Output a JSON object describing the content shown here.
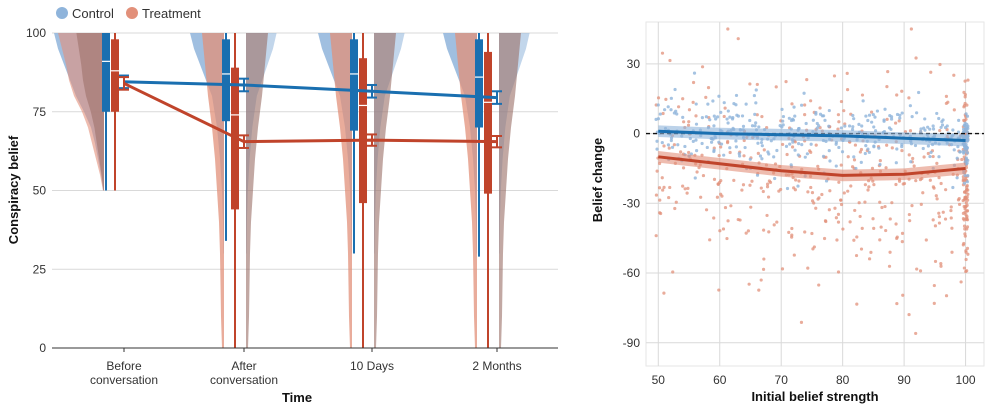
{
  "colors": {
    "control": "#1a6fb0",
    "treatment": "#c0442b",
    "control_light": "#8fb4db",
    "treatment_light": "#e2907a",
    "overlap": "#9a6e66",
    "grid": "#d9d9d9"
  },
  "legend": [
    {
      "label": "Control",
      "color_key": "control_light"
    },
    {
      "label": "Treatment",
      "color_key": "treatment_light"
    }
  ],
  "chart_data": [
    {
      "type": "line",
      "xlabel": "Time",
      "ylabel": "Conspiracy belief",
      "ylim": [
        0,
        100
      ],
      "yticks": [
        0,
        25,
        50,
        75,
        100
      ],
      "categories": [
        "Before\nconversation",
        "After\nconversation",
        "10 Days",
        "2 Months"
      ],
      "series": [
        {
          "name": "Control",
          "values": [
            84.5,
            83.5,
            81.5,
            79.5
          ],
          "err": [
            2.0,
            2.0,
            2.0,
            2.0
          ]
        },
        {
          "name": "Treatment",
          "values": [
            84.0,
            65.5,
            66.0,
            65.5
          ],
          "err": [
            2.0,
            2.0,
            1.8,
            1.8
          ]
        }
      ],
      "boxplots": [
        {
          "group": "Control",
          "category": 0,
          "whisker": [
            50,
            100
          ],
          "box": [
            75,
            100
          ],
          "median": 91
        },
        {
          "group": "Treatment",
          "category": 0,
          "whisker": [
            50,
            100
          ],
          "box": [
            75,
            98
          ],
          "median": 88
        },
        {
          "group": "Control",
          "category": 1,
          "whisker": [
            34,
            100
          ],
          "box": [
            72,
            98
          ],
          "median": 87
        },
        {
          "group": "Treatment",
          "category": 1,
          "whisker": [
            0,
            100
          ],
          "box": [
            44,
            89
          ],
          "median": 74
        },
        {
          "group": "Control",
          "category": 2,
          "whisker": [
            30,
            100
          ],
          "box": [
            69,
            98
          ],
          "median": 87
        },
        {
          "group": "Treatment",
          "category": 2,
          "whisker": [
            0,
            100
          ],
          "box": [
            46,
            92
          ],
          "median": 77
        },
        {
          "group": "Control",
          "category": 3,
          "whisker": [
            29,
            100
          ],
          "box": [
            70,
            98
          ],
          "median": 86
        },
        {
          "group": "Treatment",
          "category": 3,
          "whisker": [
            0,
            100
          ],
          "box": [
            49,
            94
          ],
          "median": 78
        }
      ],
      "grid": "horizontal",
      "legend_position": "top-left"
    },
    {
      "type": "scatter",
      "xlabel": "Initial belief strength",
      "ylabel": "Belief change",
      "xlim": [
        48,
        103
      ],
      "ylim": [
        -100,
        48
      ],
      "xticks": [
        50,
        60,
        70,
        80,
        90,
        100
      ],
      "yticks": [
        30,
        0,
        -30,
        -60,
        -90
      ],
      "reference_line": 0,
      "series": [
        {
          "name": "Control",
          "trend_x": [
            50,
            60,
            70,
            80,
            90,
            100
          ],
          "trend_y": [
            1.0,
            0.0,
            -0.5,
            -1.0,
            -2.0,
            -3.0
          ],
          "cloud_mean": [
            50,
            60,
            70,
            80,
            90,
            100
          ],
          "cloud_y": [
            2,
            1,
            0,
            0,
            -1,
            -4
          ]
        },
        {
          "name": "Treatment",
          "trend_x": [
            50,
            60,
            70,
            80,
            90,
            100
          ],
          "trend_y": [
            -10.0,
            -13.0,
            -16.0,
            -18.0,
            -17.5,
            -15.0
          ],
          "cloud_mean": [
            50,
            60,
            70,
            80,
            90,
            100
          ],
          "cloud_y": [
            -10,
            -14,
            -18,
            -20,
            -20,
            -20
          ]
        }
      ],
      "grid": "both"
    }
  ]
}
